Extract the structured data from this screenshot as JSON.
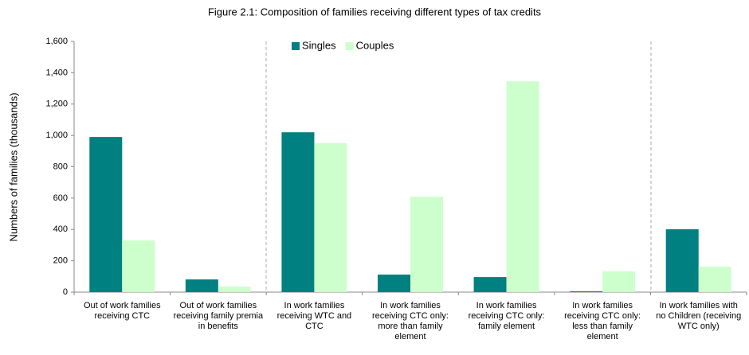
{
  "chart_data": {
    "type": "bar",
    "title": "Figure 2.1: Composition of families receiving different types of tax credits",
    "y_label": "Numbers of families (thousands)",
    "categories": [
      "Out of work families receiving CTC",
      "Out of work families receiving family premia in benefits",
      "In work families receiving WTC and CTC",
      "In work families receiving CTC only: more than family element",
      "In work families receiving CTC only: family element",
      "In work families receiving CTC only: less than family element",
      "In work families with no Children (receiving WTC only)"
    ],
    "series": [
      {
        "name": "Singles",
        "color": "#008080",
        "values": [
          990,
          81,
          1020,
          112,
          96,
          5,
          401
        ]
      },
      {
        "name": "Couples",
        "color": "#ccffcc",
        "values": [
          330,
          36,
          950,
          609,
          1345,
          132,
          162
        ]
      }
    ],
    "ylim": [
      0,
      1600
    ],
    "yticks": [
      0,
      {
        "value": 200,
        "label": "200"
      },
      {
        "value": 400,
        "label": "400"
      },
      {
        "value": 600,
        "label": "600"
      },
      {
        "value": 800,
        "label": "800"
      },
      {
        "value": 1000,
        "label": "1,000"
      },
      {
        "value": 1200,
        "label": "1,200"
      },
      {
        "value": 1400,
        "label": "1,400"
      },
      {
        "value": 1600,
        "label": "1,600"
      }
    ],
    "grid": false
  }
}
